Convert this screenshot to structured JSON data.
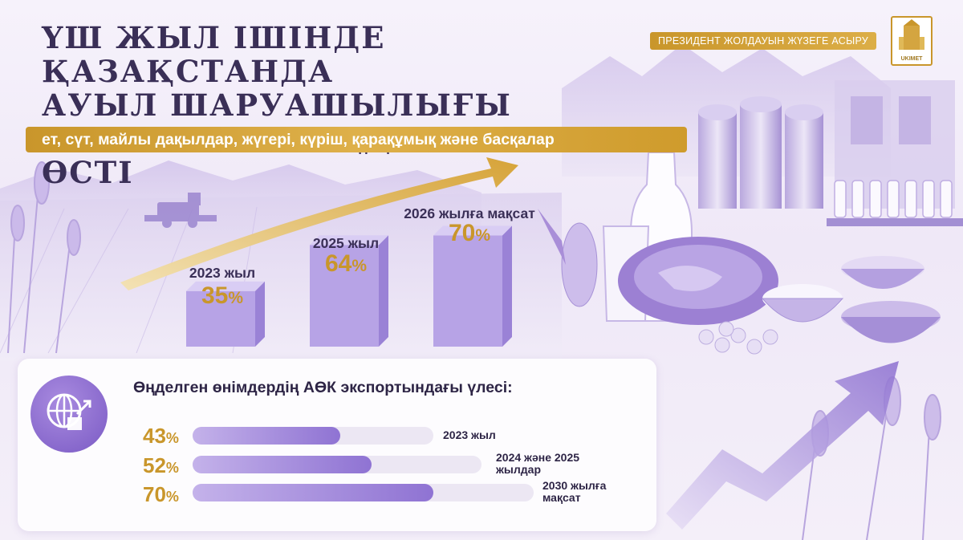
{
  "header": {
    "title_lines": [
      "ҮШ ЖЫЛ ІШІНДЕ ҚАЗАҚСТАНДА",
      "АУЫЛ ШАРУАШЫЛЫҒЫ",
      "ШИКІЗАТЫН ӨҢДЕУ ЕКІ ЕСЕ ӨСТІ"
    ],
    "subtitle": "ет, сүт, майлы дақылдар, жүгері, күріш, қарақұмық және басқалар",
    "badge": "ПРЕЗИДЕНТ ЖОЛДАУЫН ЖҮЗЕГЕ АСЫРУ",
    "logo_text": "UKIMET"
  },
  "colors": {
    "gold": "#c9962b",
    "purple": "#8f73d3",
    "dark_text": "#2e2546"
  },
  "chart_data": [
    {
      "type": "bar",
      "categories": [
        "2023 жыл",
        "2025 жыл",
        "2026 жылға мақсат"
      ],
      "values": [
        35,
        64,
        70
      ],
      "value_suffix": "%",
      "ylim": [
        0,
        100
      ]
    },
    {
      "type": "bar",
      "orientation": "horizontal",
      "title": "Өңделген өнімдердің АӨК экспортындағы үлесі:",
      "categories": [
        "2023 жыл",
        "2024 және 2025 жылдар",
        "2030 жылға мақсат"
      ],
      "values": [
        43,
        52,
        70
      ],
      "value_suffix": "%",
      "xlim": [
        0,
        100
      ]
    }
  ],
  "icons": {
    "globe": "globe-export-icon",
    "arrow": "trend-arrow-icon"
  }
}
